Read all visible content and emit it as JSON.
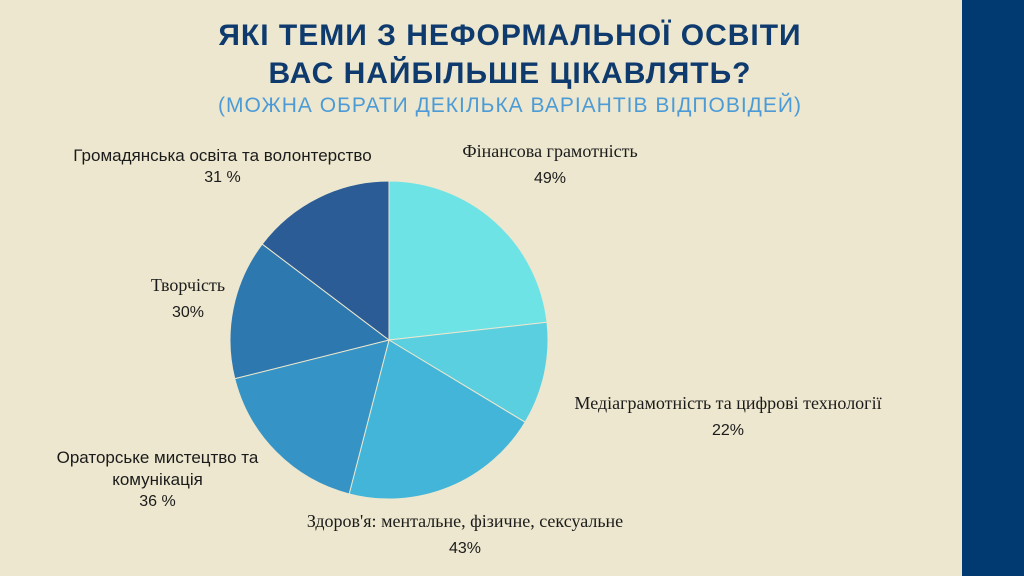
{
  "header": {
    "title_line1": "ЯКІ ТЕМИ З НЕФОРМАЛЬНОЇ ОСВІТИ",
    "title_line2": "ВАС НАЙБІЛЬШЕ ЦІКАВЛЯТЬ?",
    "subtitle": "(МОЖНА ОБРАТИ ДЕКІЛЬКА ВАРІАНТІВ ВІДПОВІДЕЙ)"
  },
  "colors": {
    "background": "#ECE7CE",
    "side_band": "#003A70",
    "title": "#0E3A6E",
    "subtitle": "#4C9BD6"
  },
  "chart_data": {
    "type": "pie",
    "title": "ЯКІ ТЕМИ З НЕФОРМАЛЬНОЇ ОСВІТИ ВАС НАЙБІЛЬШЕ ЦІКАВЛЯТЬ?",
    "subtitle": "(МОЖНА ОБРАТИ ДЕКІЛЬКА ВАРІАНТІВ ВІДПОВІДЕЙ)",
    "slices": [
      {
        "label": "Фінансова грамотність",
        "value": 49,
        "value_label": "49%",
        "color": "#6EE3E6"
      },
      {
        "label": "Медіаграмотність та цифрові технології",
        "value": 22,
        "value_label": "22%",
        "color": "#5ACFE0"
      },
      {
        "label": "Здоров'я: ментальне, фізичне, сексуальне",
        "value": 43,
        "value_label": "43%",
        "color": "#43B5D8"
      },
      {
        "label": "Ораторське мистецтво та комунікація",
        "value": 36,
        "value_label": "36 %",
        "color": "#3593C6"
      },
      {
        "label": "Творчість",
        "value": 30,
        "value_label": "30%",
        "color": "#2E78B0"
      },
      {
        "label": "Громадянська освіта та волонтерство",
        "value": 31,
        "value_label": "31 %",
        "color": "#2B5C96"
      }
    ]
  }
}
